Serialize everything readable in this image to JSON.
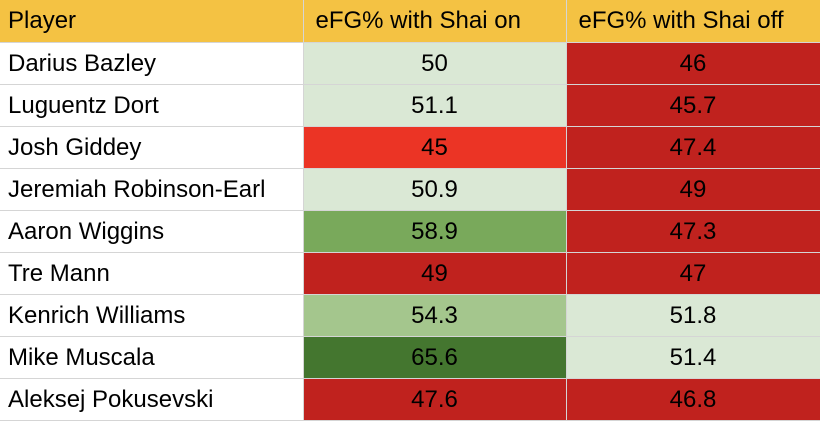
{
  "colors": {
    "header_bg": "#f4c243",
    "name_bg": "#ffffff",
    "grid_line": "#d5d5d5",
    "scale": {
      "light_green": "#dae8d5",
      "mid_green": "#a4c68d",
      "green": "#79a95b",
      "dark_green": "#44762f",
      "red": "#eb3425",
      "dark_red": "#c0221e"
    }
  },
  "table": {
    "headers": [
      "Player",
      "eFG% with Shai on",
      "eFG% with Shai off"
    ],
    "rows": [
      {
        "player": "Darius Bazley",
        "on": "50",
        "off": "46",
        "on_color": "light_green",
        "off_color": "dark_red"
      },
      {
        "player": "Luguentz Dort",
        "on": "51.1",
        "off": "45.7",
        "on_color": "light_green",
        "off_color": "dark_red"
      },
      {
        "player": "Josh Giddey",
        "on": "45",
        "off": "47.4",
        "on_color": "red",
        "off_color": "dark_red"
      },
      {
        "player": "Jeremiah Robinson-Earl",
        "on": "50.9",
        "off": "49",
        "on_color": "light_green",
        "off_color": "dark_red"
      },
      {
        "player": "Aaron Wiggins",
        "on": "58.9",
        "off": "47.3",
        "on_color": "green",
        "off_color": "dark_red"
      },
      {
        "player": "Tre Mann",
        "on": "49",
        "off": "47",
        "on_color": "dark_red",
        "off_color": "dark_red"
      },
      {
        "player": "Kenrich Williams",
        "on": "54.3",
        "off": "51.8",
        "on_color": "mid_green",
        "off_color": "light_green"
      },
      {
        "player": "Mike Muscala",
        "on": "65.6",
        "off": "51.4",
        "on_color": "dark_green",
        "off_color": "light_green"
      },
      {
        "player": "Aleksej Pokusevski",
        "on": "47.6",
        "off": "46.8",
        "on_color": "dark_red",
        "off_color": "dark_red"
      }
    ]
  }
}
